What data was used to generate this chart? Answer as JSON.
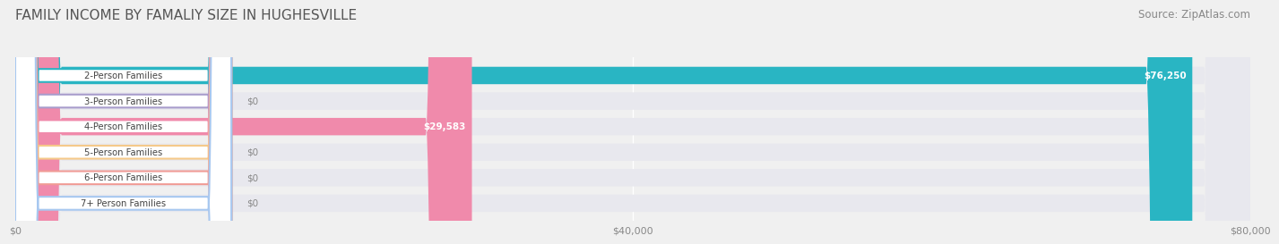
{
  "title": "FAMILY INCOME BY FAMALIY SIZE IN HUGHESVILLE",
  "source": "Source: ZipAtlas.com",
  "categories": [
    "2-Person Families",
    "3-Person Families",
    "4-Person Families",
    "5-Person Families",
    "6-Person Families",
    "7+ Person Families"
  ],
  "values": [
    76250,
    0,
    29583,
    0,
    0,
    0
  ],
  "bar_colors": [
    "#29b5c3",
    "#a89ccc",
    "#f08aab",
    "#f5c98a",
    "#f09c96",
    "#a8c8f0"
  ],
  "label_colors": [
    "#29b5c3",
    "#a89ccc",
    "#f08aab",
    "#f5c98a",
    "#f09c96",
    "#a8c8f0"
  ],
  "value_labels": [
    "$76,250",
    "$0",
    "$29,583",
    "$0",
    "$0",
    "$0"
  ],
  "xlim": [
    0,
    80000
  ],
  "xticks": [
    0,
    40000,
    80000
  ],
  "xticklabels": [
    "$0",
    "$40,000",
    "$80,000"
  ],
  "background_color": "#f0f0f0",
  "bar_bg_color": "#e8e8ee",
  "title_fontsize": 11,
  "source_fontsize": 8.5
}
